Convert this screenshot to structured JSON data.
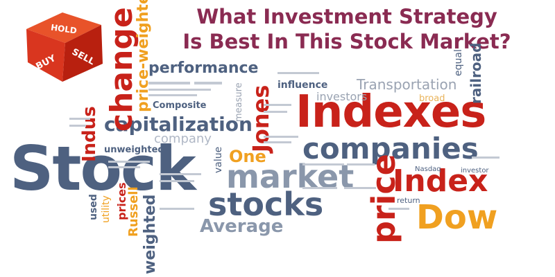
{
  "headline": {
    "line1": "What Investment Strategy",
    "line2": "Is Best In This Stock Market?",
    "color": "#8a2b52"
  },
  "dice": {
    "top_label": "HOLD",
    "left_label": "BUY",
    "right_label": "SELL",
    "colors": {
      "top": "#e8532a",
      "left": "#d9361f",
      "right": "#b8200f"
    }
  },
  "word_cloud": {
    "stock": "Stock",
    "indexes": "Indexes",
    "index": "Index",
    "dow": "Dow",
    "companies": "companies",
    "market": "market",
    "stocks": "stocks",
    "average": "Average",
    "capitalization": "capitalization",
    "company": "company",
    "performance": "performance",
    "jones": "Jones",
    "one": "One",
    "price": "price",
    "prices": "prices",
    "change": "change",
    "price_weighted": "price-weighted",
    "indus": "Indus",
    "weighted": "weighted",
    "unweighted": "unweighted",
    "composite": "Composite",
    "transportation": "Transportation",
    "influence": "influence",
    "investors": "investors",
    "railroad": "railroad",
    "equal": "equal",
    "measure": "measure",
    "value": "value",
    "russell": "Russell",
    "used": "used",
    "utility": "utility",
    "nasdaq": "Nasdaq",
    "investor": "investor",
    "return": "return",
    "broad": "broad"
  },
  "colors": {
    "slate": "#4e6180",
    "slate_light": "#8a97ab",
    "red": "#c8221a",
    "orange": "#f0a020",
    "grey": "#7f8796"
  }
}
